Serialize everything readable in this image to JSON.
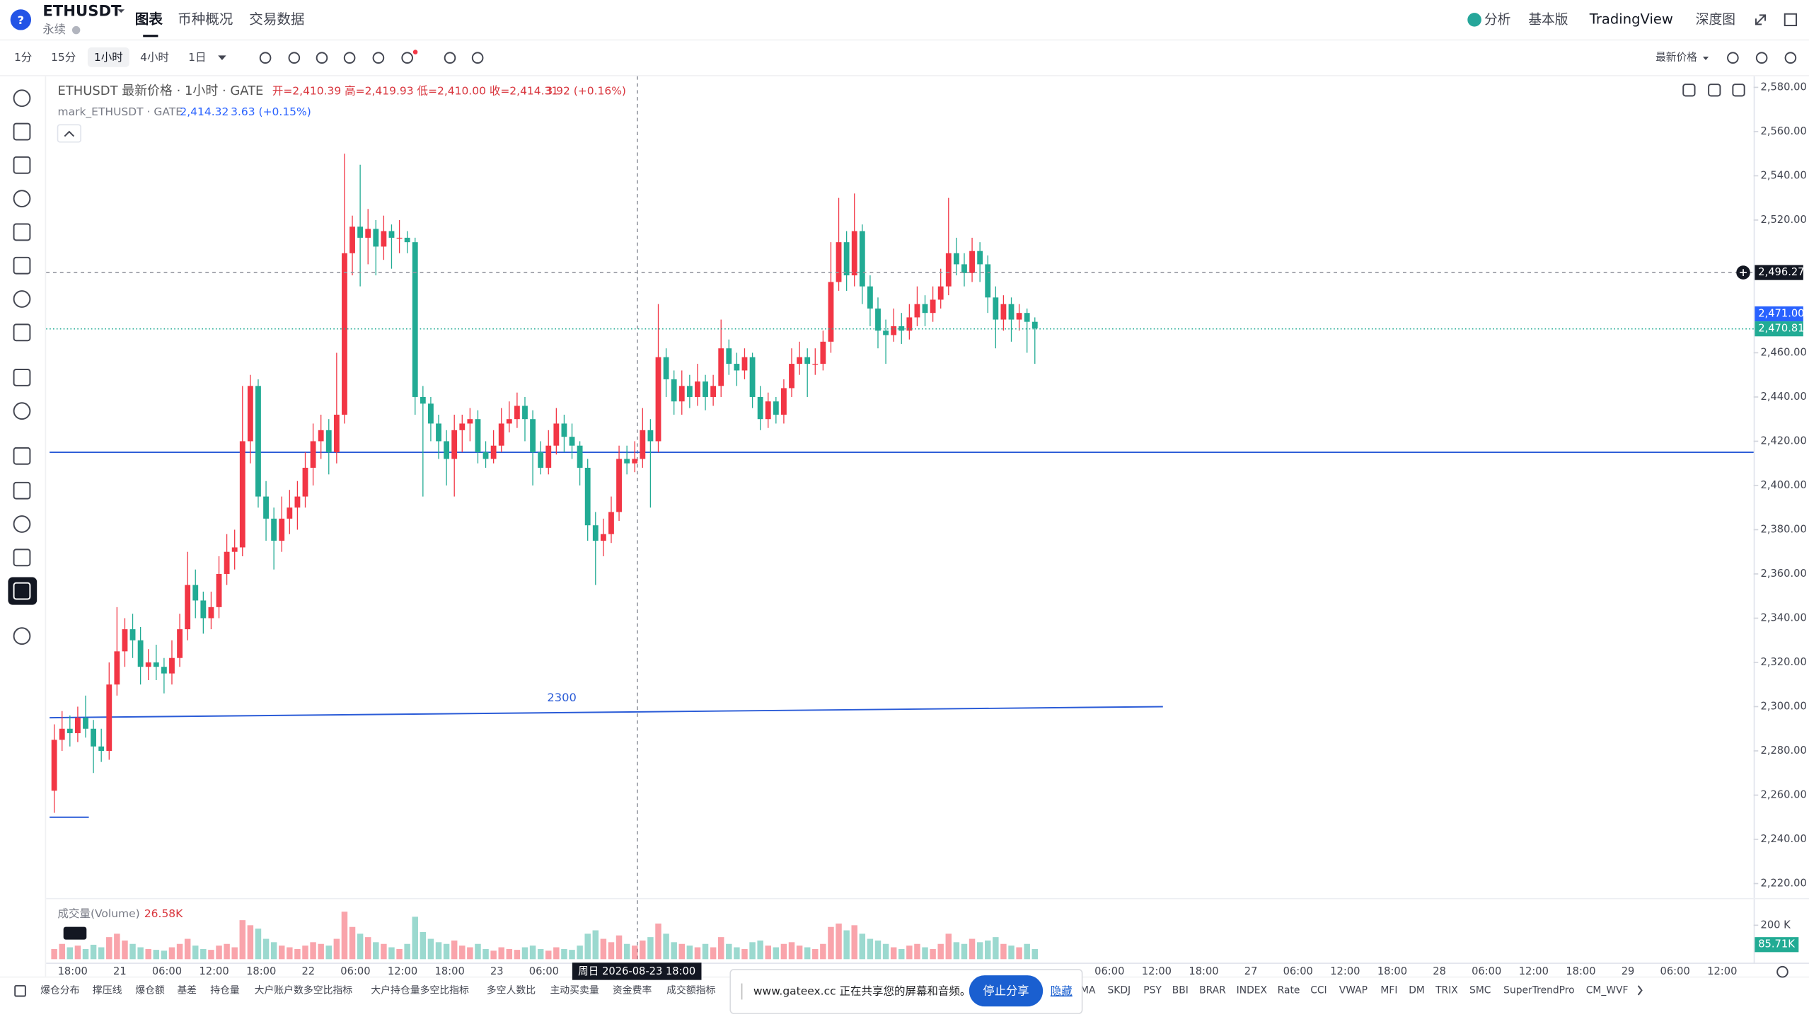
{
  "header": {
    "symbol": "ETHUSDT",
    "contract": "永续",
    "tabs": [
      "图表",
      "币种概况",
      "交易数据"
    ],
    "right": [
      "分析",
      "基本版",
      "TradingView",
      "深度图"
    ]
  },
  "toolbar": {
    "intervals": [
      "1分",
      "15分",
      "1小时",
      "4小时",
      "1日"
    ],
    "price_source": "最新价格"
  },
  "chart": {
    "type": "candlestick",
    "legend": {
      "title": "ETHUSDT 最新价格 · 1小时 · GATE",
      "ohlc": "开=2,410.39  高=2,419.93  低=2,410.00  收=2,414.31",
      "change": "3.92 (+0.16%)",
      "mark_title": "mark_ETHUSDT · GATE",
      "mark_price": "2,414.32",
      "mark_change": "3.63 (+0.15%)"
    },
    "up_color": "#f23645",
    "down_color": "#22ab94",
    "ylim": [
      2214,
      2585
    ],
    "yticks": [
      {
        "value": 2580,
        "label": "2,580.00"
      },
      {
        "value": 2560,
        "label": "2,560.00"
      },
      {
        "value": 2540,
        "label": "2,540.00"
      },
      {
        "value": 2520,
        "label": "2,520.00"
      },
      {
        "value": 2460,
        "label": "2,460.00"
      },
      {
        "value": 2440,
        "label": "2,440.00"
      },
      {
        "value": 2420,
        "label": "2,420.00"
      },
      {
        "value": 2400,
        "label": "2,400.00"
      },
      {
        "value": 2380,
        "label": "2,380.00"
      },
      {
        "value": 2360,
        "label": "2,360.00"
      },
      {
        "value": 2340,
        "label": "2,340.00"
      },
      {
        "value": 2320,
        "label": "2,320.00"
      },
      {
        "value": 2300,
        "label": "2,300.00"
      },
      {
        "value": 2280,
        "label": "2,280.00"
      },
      {
        "value": 2260,
        "label": "2,260.00"
      },
      {
        "value": 2240,
        "label": "2,240.00"
      },
      {
        "value": 2220,
        "label": "2,220.00"
      }
    ],
    "price_labels": [
      {
        "value": 2496.27,
        "label": "2,496.27",
        "color": "#131722"
      },
      {
        "value": 2471.0,
        "label": "2,471.00",
        "color": "#2962ff"
      },
      {
        "value": 2470.81,
        "label": "2,470.81",
        "color": "#22ab94"
      }
    ],
    "horizontal_line": 2415,
    "short_line": 2250,
    "trend_line": {
      "label": "2300",
      "from": 2295,
      "to": 2300
    },
    "crosshair_label": "周日 2026-08-23   18:00",
    "x_labels": [
      "18:00",
      "21",
      "06:00",
      "12:00",
      "18:00",
      "22",
      "06:00",
      "12:00",
      "18:00",
      "23",
      "06:00",
      null,
      null,
      null,
      null,
      null,
      null,
      null,
      null,
      null,
      null,
      null,
      "06:00",
      "12:00",
      "18:00",
      "27",
      "06:00",
      "12:00",
      "18:00",
      "28",
      "06:00",
      "12:00",
      "18:00",
      "29",
      "06:00",
      "12:00"
    ],
    "candles": [
      [
        2262,
        2292,
        2252,
        2285
      ],
      [
        2285,
        2298,
        2280,
        2290
      ],
      [
        2290,
        2296,
        2282,
        2288
      ],
      [
        2288,
        2300,
        2284,
        2295
      ],
      [
        2295,
        2305,
        2286,
        2290
      ],
      [
        2290,
        2294,
        2270,
        2282
      ],
      [
        2282,
        2290,
        2275,
        2280
      ],
      [
        2280,
        2320,
        2276,
        2310
      ],
      [
        2310,
        2345,
        2305,
        2325
      ],
      [
        2325,
        2340,
        2318,
        2335
      ],
      [
        2335,
        2342,
        2322,
        2330
      ],
      [
        2330,
        2336,
        2310,
        2318
      ],
      [
        2318,
        2326,
        2312,
        2320
      ],
      [
        2320,
        2328,
        2312,
        2318
      ],
      [
        2318,
        2322,
        2306,
        2315
      ],
      [
        2315,
        2330,
        2310,
        2322
      ],
      [
        2322,
        2342,
        2318,
        2335
      ],
      [
        2335,
        2370,
        2330,
        2355
      ],
      [
        2355,
        2362,
        2340,
        2348
      ],
      [
        2348,
        2352,
        2333,
        2340
      ],
      [
        2340,
        2352,
        2335,
        2345
      ],
      [
        2345,
        2368,
        2340,
        2360
      ],
      [
        2360,
        2378,
        2355,
        2370
      ],
      [
        2370,
        2380,
        2362,
        2372
      ],
      [
        2372,
        2445,
        2368,
        2420
      ],
      [
        2420,
        2450,
        2410,
        2445
      ],
      [
        2445,
        2448,
        2390,
        2395
      ],
      [
        2395,
        2402,
        2375,
        2385
      ],
      [
        2385,
        2390,
        2362,
        2375
      ],
      [
        2375,
        2395,
        2370,
        2385
      ],
      [
        2385,
        2398,
        2378,
        2390
      ],
      [
        2390,
        2402,
        2380,
        2395
      ],
      [
        2395,
        2415,
        2390,
        2408
      ],
      [
        2408,
        2428,
        2400,
        2420
      ],
      [
        2420,
        2432,
        2412,
        2425
      ],
      [
        2425,
        2430,
        2405,
        2415
      ],
      [
        2415,
        2460,
        2410,
        2432
      ],
      [
        2432,
        2550,
        2428,
        2505
      ],
      [
        2505,
        2522,
        2495,
        2517
      ],
      [
        2517,
        2545,
        2490,
        2512
      ],
      [
        2512,
        2525,
        2500,
        2516
      ],
      [
        2516,
        2520,
        2495,
        2508
      ],
      [
        2508,
        2522,
        2502,
        2515
      ],
      [
        2515,
        2518,
        2498,
        2512
      ],
      [
        2512,
        2520,
        2505,
        2512
      ],
      [
        2512,
        2515,
        2505,
        2510
      ],
      [
        2510,
        2512,
        2432,
        2440
      ],
      [
        2440,
        2445,
        2395,
        2437
      ],
      [
        2437,
        2440,
        2420,
        2428
      ],
      [
        2428,
        2432,
        2412,
        2420
      ],
      [
        2420,
        2425,
        2400,
        2412
      ],
      [
        2412,
        2432,
        2395,
        2425
      ],
      [
        2425,
        2432,
        2415,
        2428
      ],
      [
        2428,
        2435,
        2420,
        2430
      ],
      [
        2430,
        2434,
        2410,
        2415
      ],
      [
        2415,
        2420,
        2408,
        2412
      ],
      [
        2412,
        2425,
        2410,
        2418
      ],
      [
        2418,
        2435,
        2415,
        2428
      ],
      [
        2428,
        2438,
        2424,
        2430
      ],
      [
        2430,
        2442,
        2426,
        2436
      ],
      [
        2436,
        2440,
        2420,
        2430
      ],
      [
        2430,
        2434,
        2400,
        2415
      ],
      [
        2415,
        2420,
        2405,
        2408
      ],
      [
        2408,
        2425,
        2405,
        2418
      ],
      [
        2418,
        2435,
        2414,
        2428
      ],
      [
        2428,
        2432,
        2415,
        2422
      ],
      [
        2422,
        2428,
        2412,
        2418
      ],
      [
        2418,
        2420,
        2400,
        2408
      ],
      [
        2408,
        2412,
        2375,
        2382
      ],
      [
        2382,
        2388,
        2355,
        2375
      ],
      [
        2375,
        2385,
        2368,
        2378
      ],
      [
        2378,
        2395,
        2374,
        2388
      ],
      [
        2388,
        2418,
        2384,
        2412
      ],
      [
        2412,
        2418,
        2405,
        2410
      ],
      [
        2410,
        2420,
        2406,
        2412
      ],
      [
        2412,
        2435,
        2408,
        2425
      ],
      [
        2425,
        2430,
        2390,
        2420
      ],
      [
        2420,
        2482,
        2415,
        2458
      ],
      [
        2458,
        2462,
        2440,
        2448
      ],
      [
        2448,
        2452,
        2432,
        2438
      ],
      [
        2438,
        2452,
        2432,
        2445
      ],
      [
        2445,
        2450,
        2435,
        2440
      ],
      [
        2440,
        2455,
        2436,
        2447
      ],
      [
        2447,
        2450,
        2434,
        2440
      ],
      [
        2440,
        2450,
        2436,
        2445
      ],
      [
        2445,
        2475,
        2440,
        2462
      ],
      [
        2462,
        2466,
        2450,
        2455
      ],
      [
        2455,
        2460,
        2445,
        2452
      ],
      [
        2452,
        2462,
        2448,
        2458
      ],
      [
        2458,
        2460,
        2435,
        2440
      ],
      [
        2440,
        2445,
        2425,
        2430
      ],
      [
        2430,
        2442,
        2426,
        2438
      ],
      [
        2438,
        2440,
        2428,
        2432
      ],
      [
        2432,
        2448,
        2428,
        2444
      ],
      [
        2444,
        2462,
        2440,
        2455
      ],
      [
        2455,
        2465,
        2450,
        2458
      ],
      [
        2458,
        2462,
        2440,
        2455
      ],
      [
        2455,
        2462,
        2450,
        2455
      ],
      [
        2455,
        2470,
        2452,
        2465
      ],
      [
        2465,
        2510,
        2460,
        2492
      ],
      [
        2492,
        2530,
        2488,
        2510
      ],
      [
        2510,
        2515,
        2488,
        2495
      ],
      [
        2495,
        2532,
        2490,
        2515
      ],
      [
        2515,
        2518,
        2482,
        2490
      ],
      [
        2490,
        2495,
        2472,
        2480
      ],
      [
        2480,
        2485,
        2462,
        2470
      ],
      [
        2470,
        2475,
        2455,
        2468
      ],
      [
        2468,
        2480,
        2465,
        2472
      ],
      [
        2472,
        2478,
        2464,
        2470
      ],
      [
        2470,
        2482,
        2466,
        2476
      ],
      [
        2476,
        2490,
        2472,
        2482
      ],
      [
        2482,
        2486,
        2472,
        2478
      ],
      [
        2478,
        2490,
        2474,
        2484
      ],
      [
        2484,
        2498,
        2480,
        2490
      ],
      [
        2490,
        2530,
        2486,
        2505
      ],
      [
        2505,
        2512,
        2495,
        2500
      ],
      [
        2500,
        2505,
        2490,
        2496
      ],
      [
        2496,
        2512,
        2492,
        2506
      ],
      [
        2506,
        2510,
        2492,
        2500
      ],
      [
        2500,
        2504,
        2478,
        2485
      ],
      [
        2485,
        2490,
        2462,
        2475
      ],
      [
        2475,
        2486,
        2470,
        2482
      ],
      [
        2482,
        2485,
        2465,
        2475
      ],
      [
        2475,
        2482,
        2470,
        2478
      ],
      [
        2478,
        2480,
        2460,
        2474
      ],
      [
        2474,
        2476,
        2455,
        2471
      ]
    ],
    "volume": {
      "title": "成交量(Volume)",
      "last": "26.58K",
      "vlim": [
        0,
        340
      ],
      "vticks": [
        {
          "value": 200,
          "label": "200 K"
        }
      ],
      "badge": {
        "value": 85.71,
        "label": "85.71K"
      },
      "values": [
        60,
        90,
        70,
        80,
        60,
        85,
        70,
        130,
        150,
        110,
        90,
        70,
        60,
        55,
        50,
        70,
        90,
        120,
        80,
        60,
        55,
        80,
        90,
        70,
        230,
        200,
        180,
        120,
        100,
        80,
        70,
        60,
        80,
        100,
        90,
        80,
        120,
        280,
        190,
        150,
        130,
        100,
        90,
        70,
        60,
        90,
        250,
        160,
        120,
        100,
        90,
        110,
        80,
        70,
        90,
        60,
        50,
        70,
        60,
        55,
        70,
        80,
        60,
        50,
        70,
        60,
        55,
        80,
        150,
        170,
        120,
        100,
        140,
        90,
        80,
        110,
        130,
        210,
        150,
        100,
        90,
        80,
        70,
        90,
        70,
        130,
        90,
        70,
        60,
        100,
        110,
        80,
        70,
        90,
        100,
        80,
        70,
        60,
        90,
        190,
        210,
        170,
        200,
        150,
        120,
        110,
        90,
        70,
        60,
        80,
        90,
        70,
        60,
        90,
        150,
        100,
        90,
        120,
        100,
        110,
        130,
        90,
        80,
        70,
        90,
        60
      ]
    }
  },
  "indicators": [
    "爆仓分布",
    "撑压线",
    "爆仓额",
    "基差",
    "持仓量",
    "大户账户数多空比指标",
    "大户持仓量多空比指标",
    "多空人数比",
    "主动买卖量",
    "资金费率",
    "成交额指标",
    "MA",
    "SKDJ",
    "PSY",
    "BBI",
    "BRAR",
    "INDEX",
    "Rate",
    "CCI",
    "VWAP",
    "MFI",
    "DM",
    "TRIX",
    "SMC",
    "SuperTrendPro",
    "CM_WVF"
  ],
  "share_popup": {
    "message": "www.gateex.cc 正在共享您的屏幕和音频。",
    "stop": "停止分享",
    "hide": "隐藏"
  }
}
